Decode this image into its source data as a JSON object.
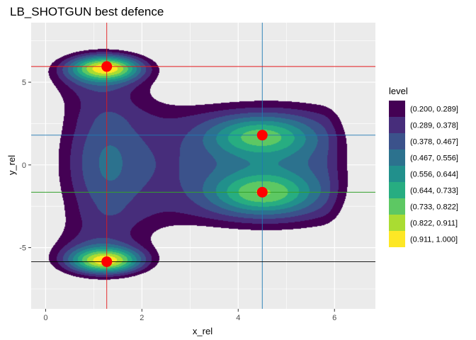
{
  "chart_data": {
    "type": "contour",
    "title": "LB_SHOTGUN best defence",
    "xlabel": "x_rel",
    "ylabel": "y_rel",
    "xlim": [
      -0.3,
      6.85
    ],
    "ylim": [
      -8.7,
      8.6
    ],
    "x_ticks": [
      0,
      2,
      4,
      6
    ],
    "x_tick_labels": [
      "0",
      "2",
      "4",
      "6"
    ],
    "y_ticks": [
      -5,
      0,
      5
    ],
    "y_tick_labels": [
      "-5",
      "0",
      "5"
    ],
    "grid": true,
    "legend_position": "right",
    "legend_title": "level",
    "levels": [
      {
        "label": "(0.200, 0.289]",
        "color": "#440154"
      },
      {
        "label": "(0.289, 0.378]",
        "color": "#472D7B"
      },
      {
        "label": "(0.378, 0.467]",
        "color": "#3B528B"
      },
      {
        "label": "(0.467, 0.556]",
        "color": "#2C728E"
      },
      {
        "label": "(0.556, 0.644]",
        "color": "#21908C"
      },
      {
        "label": "(0.644, 0.733]",
        "color": "#27AD81"
      },
      {
        "label": "(0.733, 0.822]",
        "color": "#5DC863"
      },
      {
        "label": "(0.822, 0.911]",
        "color": "#AADC32"
      },
      {
        "label": "(0.911, 1.000]",
        "color": "#FDE725"
      }
    ],
    "density_peaks": [
      {
        "x": 1.25,
        "y": 5.9,
        "height": 1.0
      },
      {
        "x": 1.25,
        "y": -5.8,
        "height": 1.0
      },
      {
        "x": 4.5,
        "y": 1.8,
        "height": 0.62
      },
      {
        "x": 4.5,
        "y": -1.7,
        "height": 0.66
      }
    ],
    "points": [
      {
        "x": 1.27,
        "y": 5.95
      },
      {
        "x": 1.27,
        "y": -5.85
      },
      {
        "x": 4.5,
        "y": 1.8
      },
      {
        "x": 4.5,
        "y": -1.65
      }
    ],
    "point_color": "#FF0000",
    "vlines": [
      {
        "x": 1.27,
        "color": "#E41A1C"
      },
      {
        "x": 4.5,
        "color": "#1F78B4"
      }
    ],
    "hlines": [
      {
        "y": 5.95,
        "color": "#E41A1C"
      },
      {
        "y": 1.8,
        "color": "#1F78B4"
      },
      {
        "y": -1.65,
        "color": "#33A02C"
      },
      {
        "y": -5.85,
        "color": "#000000"
      }
    ],
    "panel_background": "#EBEBEB",
    "grid_color": "#FFFFFF"
  }
}
